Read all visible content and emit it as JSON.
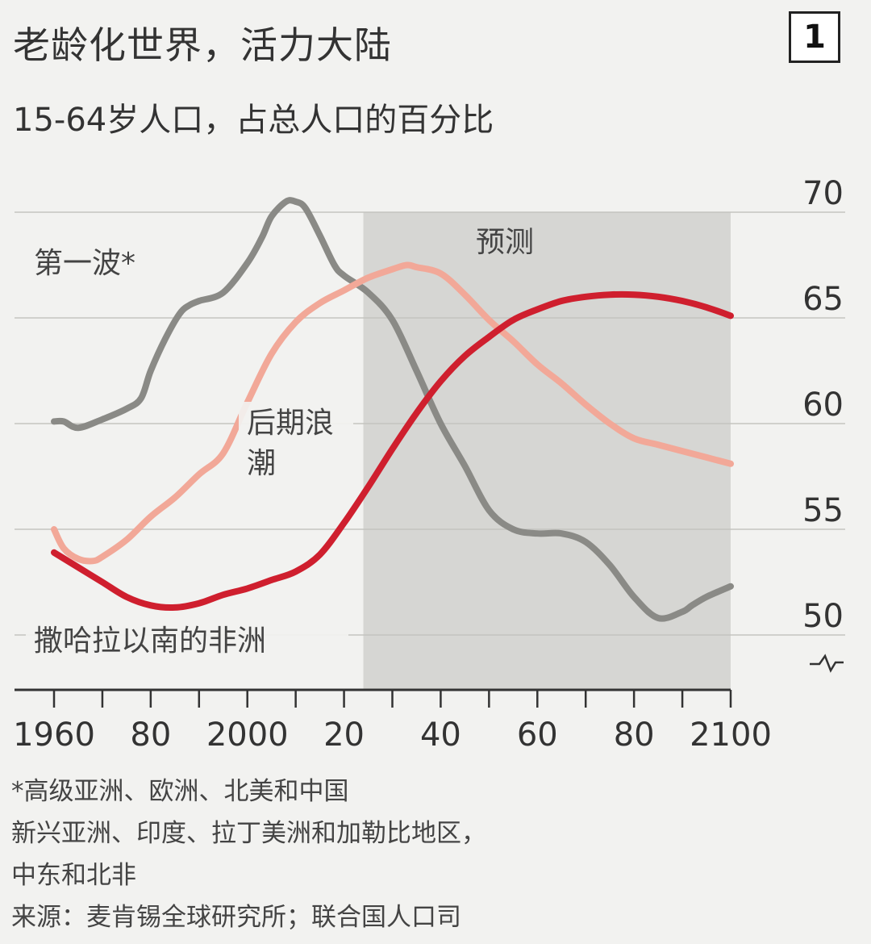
{
  "header": {
    "title": "老龄化世界，活力大陆",
    "subtitle": "15-64岁人口，占总人口的百分比",
    "badge": "1"
  },
  "chart_data": {
    "type": "line",
    "xlim": [
      1960,
      2100
    ],
    "ylim": [
      50,
      70
    ],
    "y_axis_position": "right",
    "y_axis_broken": true,
    "x_ticks": [
      1960,
      1970,
      1980,
      1990,
      2000,
      2010,
      2020,
      2030,
      2040,
      2050,
      2060,
      2070,
      2080,
      2090,
      2100
    ],
    "x_tick_labels": [
      {
        "x": 1960,
        "label": "1960"
      },
      {
        "x": 1980,
        "label": "80"
      },
      {
        "x": 2000,
        "label": "2000"
      },
      {
        "x": 2020,
        "label": "20"
      },
      {
        "x": 2040,
        "label": "40"
      },
      {
        "x": 2060,
        "label": "60"
      },
      {
        "x": 2080,
        "label": "80"
      },
      {
        "x": 2100,
        "label": "2100"
      }
    ],
    "y_ticks": [
      50,
      55,
      60,
      65,
      70
    ],
    "gridlines": true,
    "forecast": {
      "from": 2024,
      "to": 2100,
      "label": "预测"
    },
    "series": [
      {
        "name": "第一波*",
        "color": "#8a8a86",
        "x": [
          1960,
          1962,
          1965,
          1970,
          1975,
          1978,
          1980,
          1983,
          1986,
          1988,
          1990,
          1995,
          2000,
          2003,
          2005,
          2008,
          2010,
          2012,
          2015,
          2018,
          2020,
          2025,
          2030,
          2035,
          2040,
          2045,
          2050,
          2055,
          2060,
          2065,
          2070,
          2075,
          2080,
          2085,
          2090,
          2092,
          2095,
          2100
        ],
        "values": [
          60.1,
          60.1,
          59.8,
          60.2,
          60.7,
          61.2,
          62.5,
          64.0,
          65.2,
          65.6,
          65.8,
          66.2,
          67.6,
          68.8,
          69.8,
          70.5,
          70.5,
          70.2,
          68.9,
          67.5,
          67.0,
          66.2,
          64.9,
          62.5,
          60.0,
          58.0,
          55.9,
          55.0,
          54.8,
          54.8,
          54.4,
          53.3,
          51.8,
          50.8,
          51.1,
          51.4,
          51.8,
          52.3
        ]
      },
      {
        "name": "后期浪潮",
        "color": "#f2a898",
        "x": [
          1960,
          1962,
          1965,
          1968,
          1970,
          1975,
          1980,
          1985,
          1990,
          1995,
          2000,
          2005,
          2010,
          2015,
          2020,
          2025,
          2030,
          2033,
          2035,
          2040,
          2045,
          2050,
          2055,
          2060,
          2065,
          2070,
          2075,
          2080,
          2085,
          2090,
          2095,
          2100
        ],
        "values": [
          55.0,
          54.1,
          53.6,
          53.5,
          53.7,
          54.5,
          55.6,
          56.5,
          57.6,
          58.6,
          61.0,
          63.3,
          64.8,
          65.7,
          66.3,
          66.9,
          67.3,
          67.5,
          67.4,
          67.1,
          66.1,
          64.9,
          63.9,
          62.8,
          61.9,
          60.9,
          60.0,
          59.3,
          59.0,
          58.7,
          58.4,
          58.1
        ]
      },
      {
        "name": "撒哈拉以南的非洲",
        "color": "#cf1f2e",
        "x": [
          1960,
          1965,
          1970,
          1975,
          1980,
          1985,
          1990,
          1995,
          2000,
          2005,
          2010,
          2015,
          2020,
          2025,
          2030,
          2035,
          2040,
          2045,
          2050,
          2055,
          2060,
          2065,
          2070,
          2075,
          2080,
          2085,
          2090,
          2095,
          2100
        ],
        "values": [
          53.9,
          53.2,
          52.5,
          51.8,
          51.4,
          51.3,
          51.5,
          51.9,
          52.2,
          52.6,
          53.0,
          53.8,
          55.3,
          57.0,
          58.8,
          60.5,
          62.0,
          63.2,
          64.1,
          64.9,
          65.4,
          65.8,
          66.0,
          66.1,
          66.1,
          66.0,
          65.8,
          65.5,
          65.1
        ]
      }
    ]
  },
  "annotations": {
    "first_wave": "第一波*",
    "late_wave_line1": "后期浪",
    "late_wave_line2": "潮",
    "africa": "撒哈拉以南的非洲",
    "forecast": "预测"
  },
  "notes": {
    "footnote": "*高级亚洲、欧洲、北美和中国",
    "late_wave_def_line1": "新兴亚洲、印度、拉丁美洲和加勒比地区，",
    "late_wave_def_line2": "中东和北非",
    "source": "来源：麦肯锡全球研究所；联合国人口司"
  }
}
